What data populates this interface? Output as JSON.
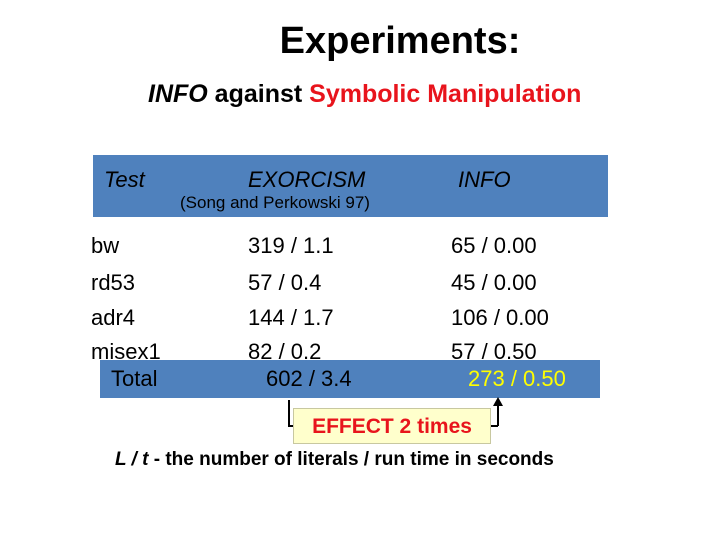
{
  "slide": {
    "title": "Experiments:",
    "subtitle": {
      "part1": "INFO",
      "part2": " against ",
      "part3": "Symbolic Manipulation"
    }
  },
  "table": {
    "headers": {
      "test": "Test",
      "exorcism": "EXORCISM",
      "exorcism_note": "(Song and Perkowski 97)",
      "info": "INFO"
    },
    "rows": [
      {
        "test": "bw",
        "exorcism": "319 / 1.1",
        "info": "65 / 0.00"
      },
      {
        "test": "rd53",
        "exorcism": "57 / 0.4",
        "info": "45 / 0.00"
      },
      {
        "test": "adr4",
        "exorcism": "144 / 1.7",
        "info": "106 / 0.00"
      },
      {
        "test": "misex1",
        "exorcism": "82 / 0.2",
        "info": "57 / 0.50"
      }
    ],
    "total": {
      "label": "Total",
      "exorcism": "602 / 3.4",
      "info": "273 / 0.50"
    }
  },
  "effect": {
    "label": "EFFECT 2 times"
  },
  "footnote": {
    "symbol": "L / t",
    "text": " - the  number of literals / run time in seconds"
  },
  "colors": {
    "band": "#4f81bd",
    "accent_red": "#e8141c",
    "highlight_yellow": "#ffff00",
    "effect_bg": "#ffffcc"
  }
}
